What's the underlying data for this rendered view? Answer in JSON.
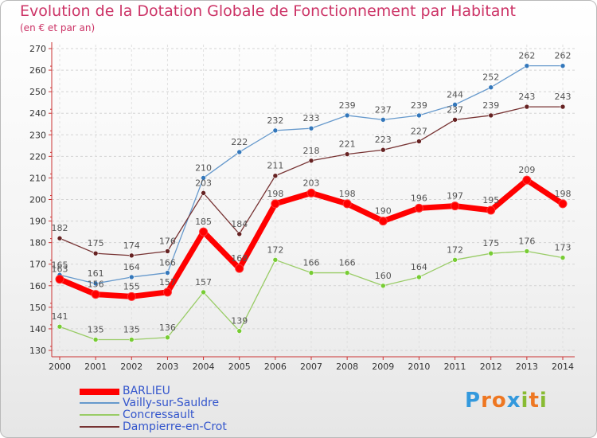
{
  "header": {
    "title": "Evolution de la Dotation Globale de Fonctionnement par Habitant",
    "subtitle": "(en € et par an)"
  },
  "chart_data": {
    "type": "line",
    "title": "Evolution de la Dotation Globale de Fonctionnement par Habitant",
    "subtitle": "(en € et par an)",
    "xlabel": "",
    "ylabel": "",
    "x": [
      "2000",
      "2001",
      "2002",
      "2003",
      "2004",
      "2005",
      "2006",
      "2007",
      "2008",
      "2009",
      "2010",
      "2011",
      "2012",
      "2013",
      "2014"
    ],
    "ylim": [
      130,
      270
    ],
    "yticks": [
      "130",
      "140",
      "150",
      "160",
      "170",
      "180",
      "190",
      "200",
      "210",
      "220",
      "230",
      "240",
      "250",
      "260",
      "270"
    ],
    "grid": "horizontal dashed",
    "legend": "bottom-left",
    "series": [
      {
        "name": "BARLIEU",
        "values": [
          163,
          156,
          155,
          157,
          185,
          168,
          198,
          203,
          198,
          190,
          196,
          197,
          195,
          209,
          198
        ],
        "color": "#ff0000",
        "marker": "#ff0000",
        "emphasis": "bold"
      },
      {
        "name": "Vailly-sur-Sauldre",
        "values": [
          165,
          161,
          164,
          166,
          210,
          222,
          232,
          233,
          239,
          237,
          239,
          244,
          252,
          262,
          262
        ],
        "color": "#6699cc",
        "marker": "#3377bb",
        "emphasis": "normal"
      },
      {
        "name": "Concressault",
        "values": [
          141,
          135,
          135,
          136,
          157,
          139,
          172,
          166,
          166,
          160,
          164,
          172,
          175,
          176,
          173
        ],
        "color": "#99cc66",
        "marker": "#77cc33",
        "emphasis": "normal"
      },
      {
        "name": "Dampierre-en-Crot",
        "values": [
          182,
          175,
          174,
          176,
          203,
          184,
          211,
          218,
          221,
          223,
          227,
          237,
          239,
          243,
          243
        ],
        "color": "#773333",
        "marker": "#662222",
        "emphasis": "normal"
      }
    ]
  },
  "legend": {
    "items": [
      {
        "label": "BARLIEU",
        "color": "#ff0000"
      },
      {
        "label": "Vailly-sur-Sauldre",
        "color": "#6699cc"
      },
      {
        "label": "Concressault",
        "color": "#99cc66"
      },
      {
        "label": "Dampierre-en-Crot",
        "color": "#773333"
      }
    ]
  },
  "logo": {
    "letters": [
      {
        "ch": "P",
        "color": "#3399dd"
      },
      {
        "ch": "r",
        "color": "#ee7722"
      },
      {
        "ch": "o",
        "color": "#ee7722"
      },
      {
        "ch": "x",
        "color": "#3399dd"
      },
      {
        "ch": "i",
        "color": "#88bb33"
      },
      {
        "ch": "t",
        "color": "#ee7722"
      },
      {
        "ch": "i",
        "color": "#88bb33"
      }
    ]
  }
}
